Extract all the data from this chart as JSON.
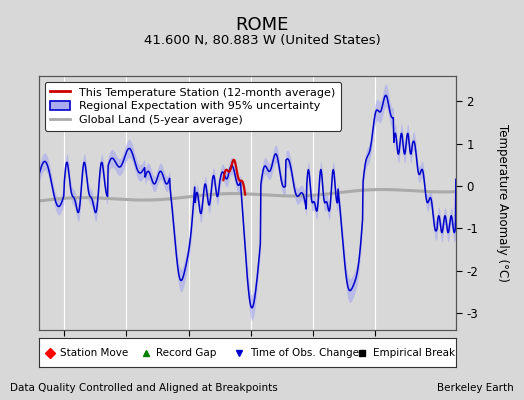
{
  "title": "ROME",
  "subtitle": "41.600 N, 80.883 W (United States)",
  "ylabel": "Temperature Anomaly (°C)",
  "xlabel_note": "Data Quality Controlled and Aligned at Breakpoints",
  "credit": "Berkeley Earth",
  "xlim": [
    1893.0,
    1926.5
  ],
  "ylim": [
    -3.4,
    2.6
  ],
  "yticks": [
    -3,
    -2,
    -1,
    0,
    1,
    2
  ],
  "xticks": [
    1895,
    1900,
    1905,
    1910,
    1915,
    1920
  ],
  "bg_color": "#d8d8d8",
  "plot_bg_color": "#d8d8d8",
  "blue_line_color": "#0000cc",
  "blue_fill_color": "#aaaaee",
  "red_line_color": "#cc0000",
  "gray_line_color": "#aaaaaa",
  "grid_color": "#ffffff",
  "title_fontsize": 13,
  "subtitle_fontsize": 9.5,
  "legend_fontsize": 8,
  "tick_fontsize": 8.5,
  "annot_fontsize": 7.5
}
